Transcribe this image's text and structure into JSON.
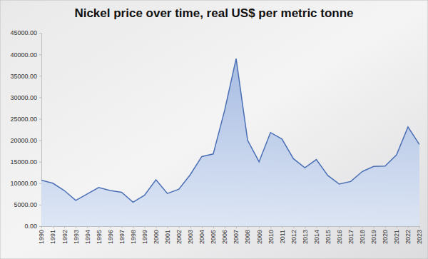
{
  "chart_data": {
    "type": "area",
    "title": "Nickel price over time, real US$ per metric tonne",
    "categories": [
      "1990",
      "1991",
      "1992",
      "1993",
      "1994",
      "1995",
      "1996",
      "1997",
      "1998",
      "1999",
      "2000",
      "2001",
      "2002",
      "2003",
      "2004",
      "2005",
      "2006",
      "2007",
      "2008",
      "2009",
      "2010",
      "2011",
      "2012",
      "2013",
      "2014",
      "2015",
      "2016",
      "2017",
      "2018",
      "2019",
      "2020",
      "2021",
      "2022",
      "2023"
    ],
    "values": [
      10700,
      10000,
      8300,
      6000,
      7500,
      9000,
      8300,
      7900,
      5600,
      7200,
      10800,
      7600,
      8600,
      12000,
      16200,
      16800,
      27000,
      39000,
      20000,
      15000,
      21800,
      20300,
      15700,
      13600,
      15500,
      11800,
      9800,
      10400,
      12700,
      13900,
      14000,
      16600,
      23100,
      19000
    ],
    "color": "#4a6fb5",
    "ylim": [
      0,
      45000
    ],
    "yticks": [
      {
        "value": 0,
        "label": "0.00"
      },
      {
        "value": 5000,
        "label": "5000.00"
      },
      {
        "value": 10000,
        "label": "10000.00"
      },
      {
        "value": 15000,
        "label": "15000.00"
      },
      {
        "value": 20000,
        "label": "20000.00"
      },
      {
        "value": 25000,
        "label": "25000.00"
      },
      {
        "value": 30000,
        "label": "30000.00"
      },
      {
        "value": 35000,
        "label": "35000.00"
      },
      {
        "value": 40000,
        "label": "40000.00"
      },
      {
        "value": 45000,
        "label": "45000.00"
      }
    ],
    "grid": false
  }
}
